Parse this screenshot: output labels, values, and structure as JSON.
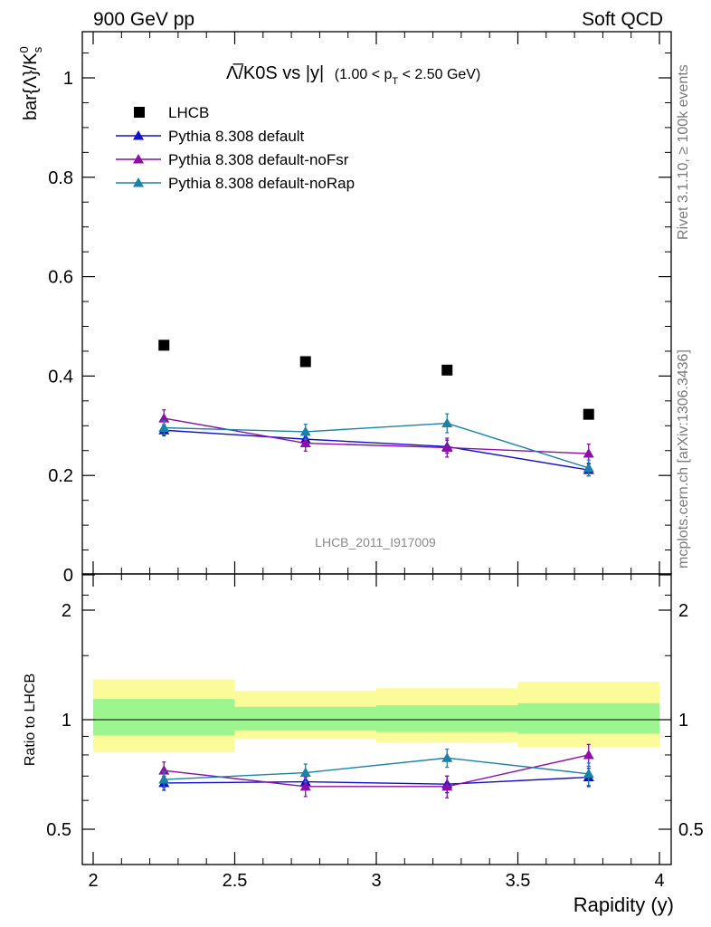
{
  "header": {
    "left": "900 GeV pp",
    "right": "Soft QCD"
  },
  "side_labels": {
    "rivet": "Rivet 3.1.10, ≥ 100k events",
    "mcplots": "mcplots.cern.ch [arXiv:1306.3436]"
  },
  "chart_data": {
    "type": "line",
    "title_main": "Λ̅/K0S vs |y|",
    "title_cut": "(1.00 < p",
    "title_cut_sub": "T",
    "title_cut_end": " < 2.50 GeV)",
    "analysis_label": "LHCB_2011_I917009",
    "xlabel": "Rapidity (y)",
    "ylabel": "bar{Λ}/K",
    "ylabel_sup": "0",
    "ylabel_sub": "s",
    "ratio_ylabel": "Ratio to LHCB",
    "xlim": [
      2,
      4
    ],
    "ylim": [
      0,
      1.1
    ],
    "ratio_ylim": [
      0.33,
      2.3
    ],
    "x_ticks": [
      {
        "value": 2,
        "label": "2"
      },
      {
        "value": 2.5,
        "label": "2.5"
      },
      {
        "value": 3,
        "label": "3"
      },
      {
        "value": 3.5,
        "label": "3.5"
      },
      {
        "value": 4,
        "label": "4"
      }
    ],
    "y_ticks": [
      {
        "value": 0,
        "label": "0"
      },
      {
        "value": 0.2,
        "label": "0.2"
      },
      {
        "value": 0.4,
        "label": "0.4"
      },
      {
        "value": 0.6,
        "label": "0.6"
      },
      {
        "value": 0.8,
        "label": "0.8"
      },
      {
        "value": 1,
        "label": "1"
      }
    ],
    "ratio_y_ticks": [
      {
        "value": 0.5,
        "label": "0.5"
      },
      {
        "value": 1,
        "label": "1"
      },
      {
        "value": 2,
        "label": "2"
      }
    ],
    "x_bins": [
      [
        2.0,
        2.5
      ],
      [
        2.5,
        3.0
      ],
      [
        3.0,
        3.5
      ],
      [
        3.5,
        4.0
      ]
    ],
    "x": [
      2.25,
      2.75,
      3.25,
      3.75
    ],
    "reference": {
      "name": "LHCB",
      "values": [
        0.462,
        0.429,
        0.412,
        0.323
      ],
      "band_inner": [
        [
          0.905,
          1.14
        ],
        [
          0.935,
          1.085
        ],
        [
          0.925,
          1.095
        ],
        [
          0.915,
          1.11
        ]
      ],
      "band_outer": [
        [
          0.815,
          1.29
        ],
        [
          0.885,
          1.2
        ],
        [
          0.865,
          1.22
        ],
        [
          0.84,
          1.27
        ]
      ]
    },
    "series": [
      {
        "name": "Pythia 8.308 default",
        "color": "#1010c8",
        "values": [
          0.291,
          0.273,
          0.258,
          0.211
        ],
        "errors": [
          0.011,
          0.012,
          0.013,
          0.012
        ],
        "ratio": [
          0.67,
          0.675,
          0.665,
          0.695
        ],
        "ratio_errors": [
          0.03,
          0.03,
          0.035,
          0.04
        ]
      },
      {
        "name": "Pythia 8.308 default-noFsr",
        "color": "#8c0fa8",
        "values": [
          0.315,
          0.265,
          0.256,
          0.244
        ],
        "errors": [
          0.017,
          0.016,
          0.019,
          0.019
        ],
        "ratio": [
          0.725,
          0.655,
          0.655,
          0.8
        ],
        "ratio_errors": [
          0.04,
          0.04,
          0.045,
          0.055
        ]
      },
      {
        "name": "Pythia 8.308 default-noRap",
        "color": "#1a82aa",
        "values": [
          0.296,
          0.288,
          0.305,
          0.215
        ],
        "errors": [
          0.014,
          0.015,
          0.019,
          0.016
        ],
        "ratio": [
          0.685,
          0.715,
          0.785,
          0.71
        ],
        "ratio_errors": [
          0.035,
          0.04,
          0.045,
          0.05
        ]
      }
    ],
    "colors": {
      "band_inner": "#9cf58e",
      "band_outer": "#fbfb9a",
      "reference_marker": "#000000"
    }
  }
}
